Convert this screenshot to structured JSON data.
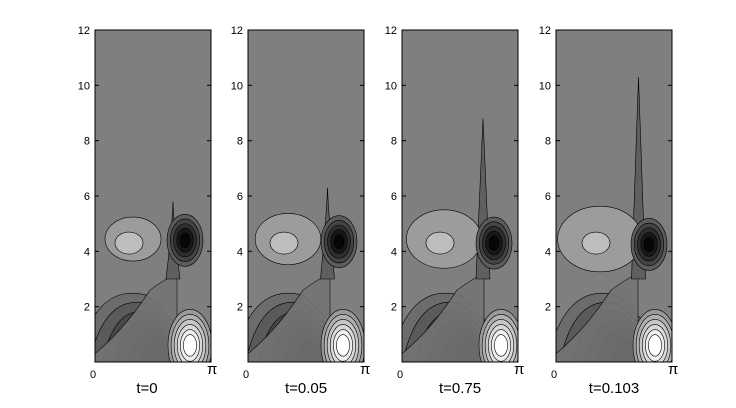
{
  "figure": {
    "panels": [
      {
        "caption": "t=0"
      },
      {
        "caption": "t=0.05"
      },
      {
        "caption": "t=0.75"
      },
      {
        "caption": "t=0.103"
      }
    ],
    "y_ticks": [
      "2",
      "4",
      "6",
      "8",
      "10",
      "12"
    ],
    "x_min_label": "0",
    "x_max_label": "π",
    "background_color": "#7f7f7f"
  }
}
